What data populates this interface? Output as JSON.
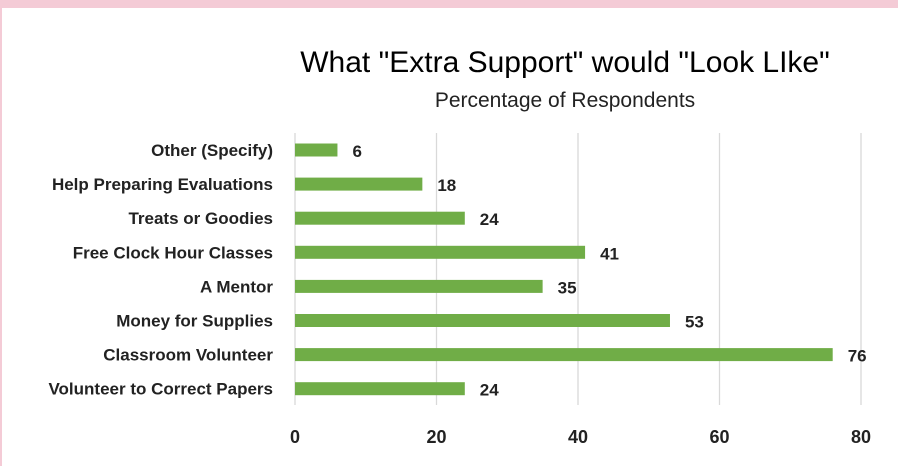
{
  "chart_data": {
    "type": "bar",
    "orientation": "horizontal",
    "title": "What \"Extra Support\" would \"Look LIke\"",
    "subtitle": "Percentage of Respondents",
    "categories": [
      "Other (Specify)",
      "Help Preparing Evaluations",
      "Treats or Goodies",
      "Free Clock Hour Classes",
      "A Mentor",
      "Money for Supplies",
      "Classroom Volunteer",
      "Volunteer to Correct Papers"
    ],
    "values": [
      6,
      18,
      24,
      41,
      35,
      53,
      76,
      24
    ],
    "xlim": [
      0,
      80
    ],
    "xticks": [
      0,
      20,
      40,
      60,
      80
    ],
    "grid": true,
    "legend": "none",
    "bar_color": "#70ad47"
  }
}
